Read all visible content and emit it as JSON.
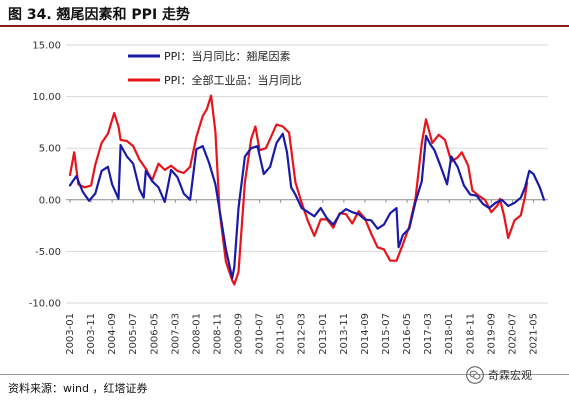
{
  "header": {
    "title": "图 34. 翘尾因素和 PPI 走势"
  },
  "footer": {
    "source": "资料来源：wind ，红塔证券",
    "watermark": "奇霖宏观"
  },
  "colors": {
    "blue": "#1a1aa8",
    "red": "#e8141b",
    "grid": "#d9d9d9"
  },
  "chart_data": {
    "type": "line",
    "title": "",
    "xlabel": "",
    "ylabel": "",
    "ylim": [
      -10,
      15
    ],
    "yticks": [
      -10,
      -5,
      0,
      5,
      10,
      15
    ],
    "ytick_labels": [
      "-10.00",
      "-5.00",
      "0.00",
      "5.00",
      "10.00",
      "15.00"
    ],
    "xticks": [
      "2003-01",
      "2003-11",
      "2004-09",
      "2005-07",
      "2006-05",
      "2007-03",
      "2008-01",
      "2008-11",
      "2009-09",
      "2010-07",
      "2011-05",
      "2012-03",
      "2013-01",
      "2013-11",
      "2014-09",
      "2015-07",
      "2016-05",
      "2017-03",
      "2018-01",
      "2018-11",
      "2019-09",
      "2020-07",
      "2021-05"
    ],
    "x_start": "2003-01",
    "legend_position": "top-center",
    "series": [
      {
        "name": "PPI：当月同比：翘尾因素",
        "color": "#1a1aa8",
        "points": [
          [
            "2003-01",
            1.4
          ],
          [
            "2003-04",
            2.3
          ],
          [
            "2003-07",
            0.8
          ],
          [
            "2003-10",
            -0.1
          ],
          [
            "2004-01",
            0.6
          ],
          [
            "2004-04",
            2.8
          ],
          [
            "2004-07",
            3.2
          ],
          [
            "2004-09",
            1.5
          ],
          [
            "2004-12",
            0.1
          ],
          [
            "2005-01",
            5.3
          ],
          [
            "2005-04",
            4.2
          ],
          [
            "2005-07",
            3.5
          ],
          [
            "2005-10",
            1.0
          ],
          [
            "2005-12",
            0.2
          ],
          [
            "2006-01",
            2.8
          ],
          [
            "2006-04",
            1.8
          ],
          [
            "2006-07",
            1.2
          ],
          [
            "2006-10",
            -0.2
          ],
          [
            "2007-01",
            2.9
          ],
          [
            "2007-04",
            2.2
          ],
          [
            "2007-07",
            0.6
          ],
          [
            "2007-10",
            0.0
          ],
          [
            "2008-01",
            4.9
          ],
          [
            "2008-04",
            5.2
          ],
          [
            "2008-07",
            3.6
          ],
          [
            "2008-10",
            1.5
          ],
          [
            "2008-12",
            -1.0
          ],
          [
            "2009-03",
            -4.8
          ],
          [
            "2009-06",
            -7.6
          ],
          [
            "2009-07",
            -6.5
          ],
          [
            "2009-09",
            -0.8
          ],
          [
            "2009-12",
            4.2
          ],
          [
            "2010-03",
            5.0
          ],
          [
            "2010-06",
            5.2
          ],
          [
            "2010-09",
            2.5
          ],
          [
            "2010-12",
            3.2
          ],
          [
            "2011-03",
            5.5
          ],
          [
            "2011-06",
            6.4
          ],
          [
            "2011-08",
            4.6
          ],
          [
            "2011-10",
            1.2
          ],
          [
            "2011-12",
            0.5
          ],
          [
            "2012-03",
            -0.8
          ],
          [
            "2012-06",
            -1.2
          ],
          [
            "2012-09",
            -1.6
          ],
          [
            "2012-12",
            -0.8
          ],
          [
            "2013-03",
            -1.8
          ],
          [
            "2013-06",
            -2.4
          ],
          [
            "2013-09",
            -1.4
          ],
          [
            "2013-12",
            -0.9
          ],
          [
            "2014-03",
            -1.2
          ],
          [
            "2014-06",
            -1.4
          ],
          [
            "2014-09",
            -1.9
          ],
          [
            "2014-12",
            -2.0
          ],
          [
            "2015-03",
            -2.8
          ],
          [
            "2015-06",
            -2.4
          ],
          [
            "2015-09",
            -1.3
          ],
          [
            "2015-12",
            -0.8
          ],
          [
            "2016-01",
            -4.6
          ],
          [
            "2016-03",
            -3.4
          ],
          [
            "2016-06",
            -2.8
          ],
          [
            "2016-09",
            -0.2
          ],
          [
            "2016-12",
            1.8
          ],
          [
            "2017-02",
            6.2
          ],
          [
            "2017-04",
            5.4
          ],
          [
            "2017-06",
            4.8
          ],
          [
            "2017-09",
            3.2
          ],
          [
            "2017-12",
            1.5
          ],
          [
            "2018-02",
            4.2
          ],
          [
            "2018-05",
            3.2
          ],
          [
            "2018-08",
            1.4
          ],
          [
            "2018-11",
            0.5
          ],
          [
            "2019-02",
            0.4
          ],
          [
            "2019-05",
            -0.4
          ],
          [
            "2019-08",
            -0.8
          ],
          [
            "2019-11",
            -0.3
          ],
          [
            "2020-02",
            0.0
          ],
          [
            "2020-05",
            -0.6
          ],
          [
            "2020-08",
            -0.3
          ],
          [
            "2020-11",
            0.2
          ],
          [
            "2021-01",
            1.2
          ],
          [
            "2021-03",
            2.8
          ],
          [
            "2021-05",
            2.5
          ],
          [
            "2021-08",
            1.2
          ],
          [
            "2021-10",
            0.0
          ]
        ]
      },
      {
        "name": "PPI：全部工业品：当月同比",
        "color": "#e8141b",
        "points": [
          [
            "2003-01",
            2.4
          ],
          [
            "2003-03",
            4.6
          ],
          [
            "2003-05",
            1.5
          ],
          [
            "2003-08",
            1.2
          ],
          [
            "2003-11",
            1.4
          ],
          [
            "2004-01",
            3.4
          ],
          [
            "2004-04",
            5.5
          ],
          [
            "2004-07",
            6.4
          ],
          [
            "2004-10",
            8.4
          ],
          [
            "2004-12",
            7.1
          ],
          [
            "2005-01",
            5.8
          ],
          [
            "2005-04",
            5.7
          ],
          [
            "2005-07",
            5.2
          ],
          [
            "2005-10",
            3.9
          ],
          [
            "2006-01",
            3.0
          ],
          [
            "2006-04",
            1.9
          ],
          [
            "2006-07",
            3.5
          ],
          [
            "2006-10",
            2.9
          ],
          [
            "2007-01",
            3.3
          ],
          [
            "2007-04",
            2.8
          ],
          [
            "2007-07",
            2.6
          ],
          [
            "2007-10",
            3.2
          ],
          [
            "2008-01",
            6.1
          ],
          [
            "2008-04",
            8.1
          ],
          [
            "2008-06",
            8.8
          ],
          [
            "2008-08",
            10.1
          ],
          [
            "2008-10",
            6.6
          ],
          [
            "2008-12",
            -1.1
          ],
          [
            "2009-03",
            -6.0
          ],
          [
            "2009-06",
            -7.8
          ],
          [
            "2009-07",
            -8.2
          ],
          [
            "2009-09",
            -7.0
          ],
          [
            "2009-12",
            1.7
          ],
          [
            "2010-03",
            5.9
          ],
          [
            "2010-05",
            7.1
          ],
          [
            "2010-07",
            4.8
          ],
          [
            "2010-10",
            5.0
          ],
          [
            "2010-12",
            5.9
          ],
          [
            "2011-03",
            7.3
          ],
          [
            "2011-06",
            7.1
          ],
          [
            "2011-09",
            6.5
          ],
          [
            "2011-12",
            1.7
          ],
          [
            "2012-03",
            -0.3
          ],
          [
            "2012-06",
            -2.1
          ],
          [
            "2012-09",
            -3.5
          ],
          [
            "2012-12",
            -1.9
          ],
          [
            "2013-03",
            -1.9
          ],
          [
            "2013-06",
            -2.7
          ],
          [
            "2013-09",
            -1.3
          ],
          [
            "2013-12",
            -1.4
          ],
          [
            "2014-03",
            -2.3
          ],
          [
            "2014-06",
            -1.1
          ],
          [
            "2014-09",
            -1.8
          ],
          [
            "2014-12",
            -3.3
          ],
          [
            "2015-03",
            -4.6
          ],
          [
            "2015-06",
            -4.8
          ],
          [
            "2015-09",
            -5.9
          ],
          [
            "2015-12",
            -5.9
          ],
          [
            "2016-03",
            -4.3
          ],
          [
            "2016-06",
            -2.6
          ],
          [
            "2016-09",
            0.1
          ],
          [
            "2016-12",
            5.5
          ],
          [
            "2017-02",
            7.8
          ],
          [
            "2017-05",
            5.5
          ],
          [
            "2017-08",
            6.3
          ],
          [
            "2017-11",
            5.8
          ],
          [
            "2018-02",
            3.7
          ],
          [
            "2018-05",
            4.1
          ],
          [
            "2018-07",
            4.6
          ],
          [
            "2018-10",
            3.3
          ],
          [
            "2018-12",
            0.9
          ],
          [
            "2019-03",
            0.4
          ],
          [
            "2019-06",
            0.0
          ],
          [
            "2019-09",
            -1.2
          ],
          [
            "2019-12",
            -0.5
          ],
          [
            "2020-01",
            0.1
          ],
          [
            "2020-03",
            -1.5
          ],
          [
            "2020-05",
            -3.7
          ],
          [
            "2020-08",
            -2.0
          ],
          [
            "2020-11",
            -1.5
          ],
          [
            "2021-01",
            0.3
          ],
          [
            "2021-02",
            1.7
          ]
        ]
      }
    ]
  }
}
